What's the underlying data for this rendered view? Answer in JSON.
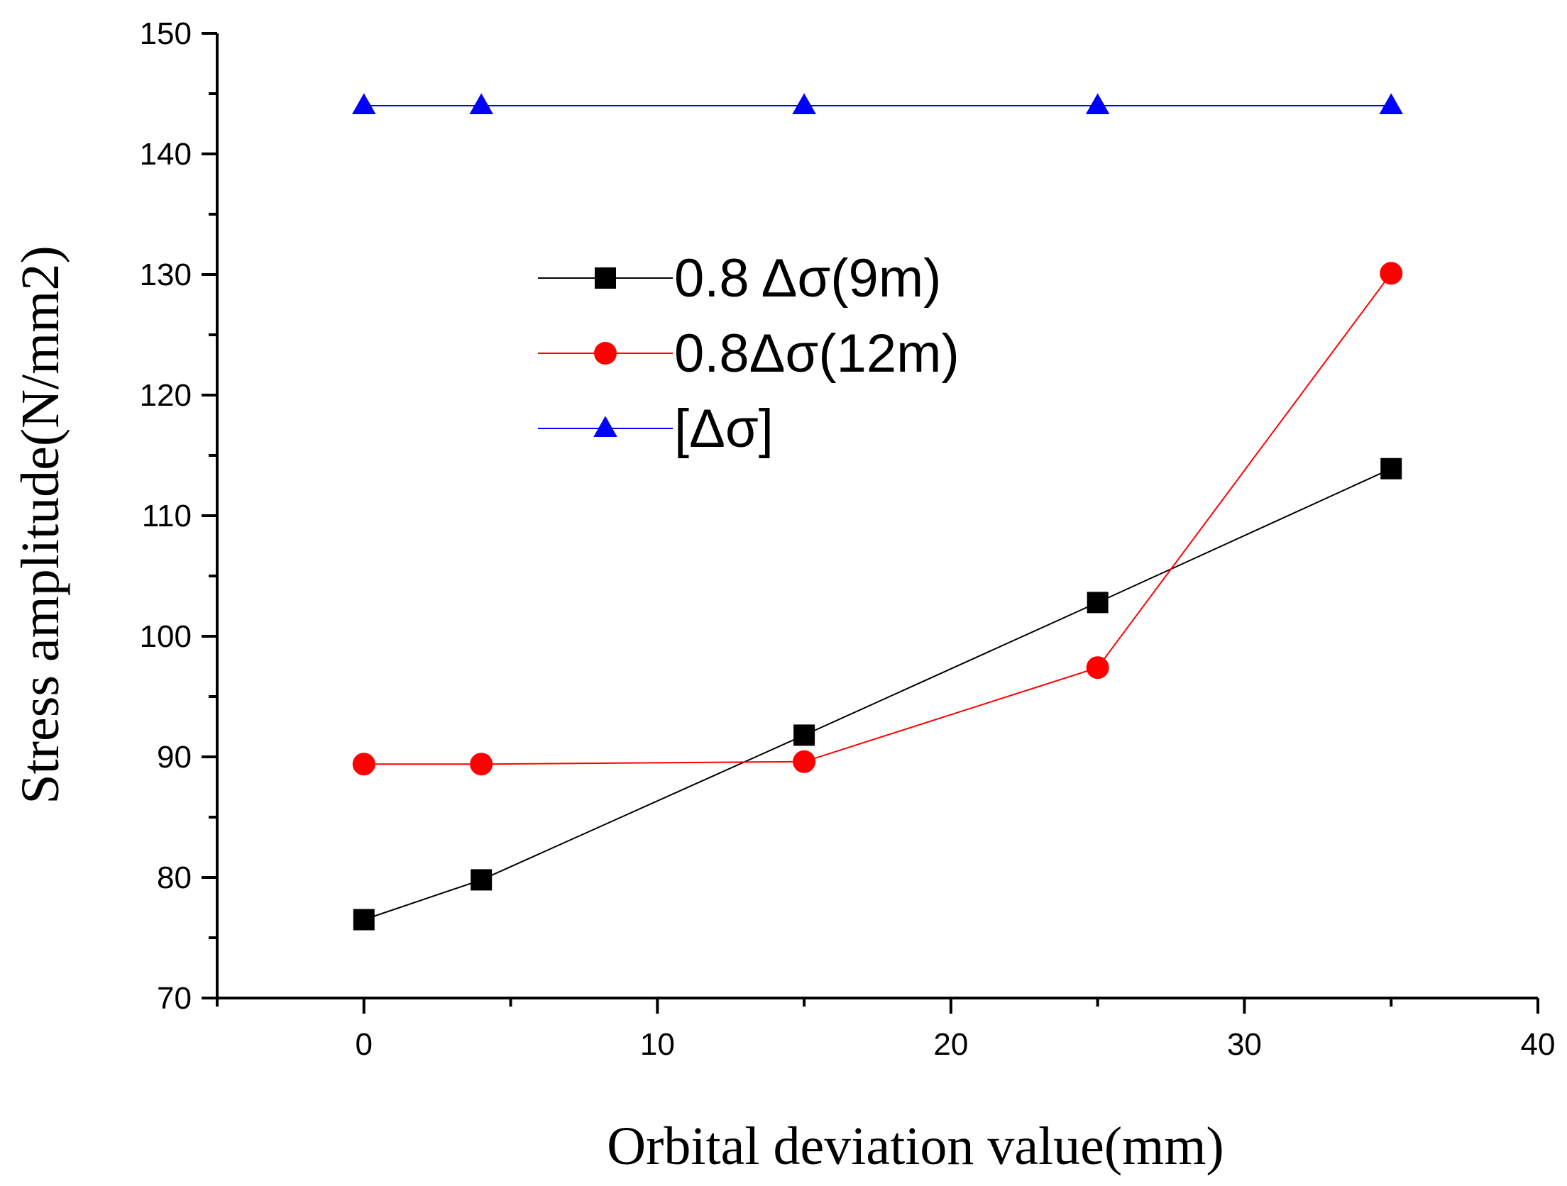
{
  "chart_data": {
    "type": "line",
    "title": "",
    "xlabel": "Orbital deviation value(mm)",
    "ylabel": "Stress amplitude(N/mm2)",
    "xlim": [
      -5,
      40
    ],
    "ylim": [
      70,
      150
    ],
    "xticks": [
      0,
      10,
      20,
      30,
      40
    ],
    "yticks": [
      70,
      80,
      90,
      100,
      110,
      120,
      130,
      140,
      150
    ],
    "x": [
      0,
      4,
      15,
      25,
      35
    ],
    "grid": false,
    "legend_position": "upper-center",
    "series": [
      {
        "name": "0.8 Δσ(9m)",
        "color": "#000000",
        "marker": "square",
        "values": [
          76.5,
          79.8,
          91.8,
          102.8,
          113.9
        ]
      },
      {
        "name": "0.8Δσ(12m)",
        "color": "#ff0000",
        "marker": "circle",
        "values": [
          89.4,
          89.4,
          89.6,
          97.4,
          130.1
        ]
      },
      {
        "name": "[Δσ]",
        "color": "#0000ff",
        "marker": "triangle",
        "values": [
          144,
          144,
          144,
          144,
          144
        ]
      }
    ]
  }
}
